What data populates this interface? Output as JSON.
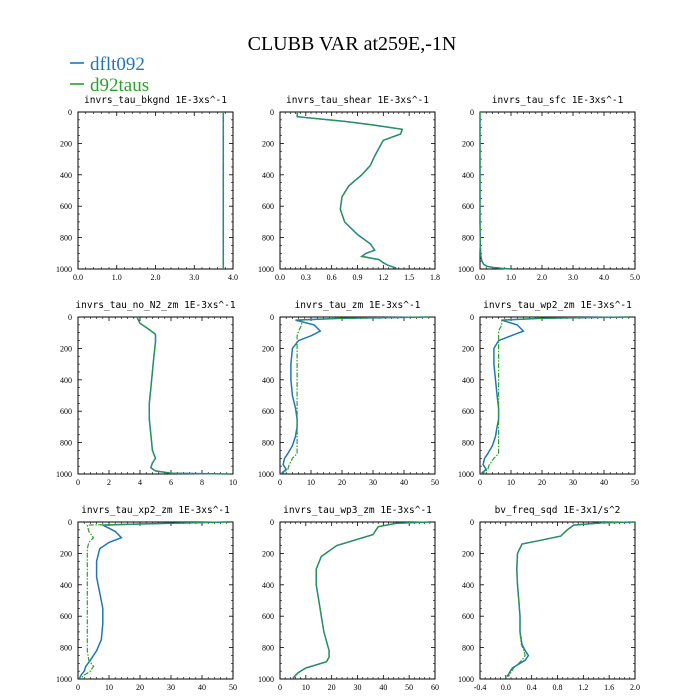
{
  "figure": {
    "title": "CLUBB VAR at259E,-1N",
    "legend": [
      {
        "name": "dflt092",
        "color": "#1f77b4"
      },
      {
        "name": "d92taus",
        "color": "#2ca02c"
      }
    ],
    "legend_placement": "top-left"
  },
  "chart_data": [
    {
      "type": "line",
      "title": "invrs_tau_bkgnd",
      "unit": "1E-3xs^-1",
      "xlim": [
        0,
        4
      ],
      "xticks": [
        "0.0",
        "1.0",
        "2.0",
        "3.0",
        "4.0"
      ],
      "ylim": [
        1000,
        0
      ],
      "yticks": [
        "0",
        "200",
        "400",
        "600",
        "800",
        "1000"
      ],
      "series": [
        {
          "name": "dflt092",
          "x": [
            3.75,
            3.75
          ],
          "y": [
            0,
            1000
          ]
        },
        {
          "name": "d92taus",
          "x": [
            3.75,
            3.75
          ],
          "y": [
            0,
            1000
          ]
        }
      ]
    },
    {
      "type": "line",
      "title": "invrs_tau_shear",
      "unit": "1E-3xs^-1",
      "xlim": [
        0,
        1.8
      ],
      "xticks": [
        "0.0",
        "0.3",
        "0.6",
        "0.9",
        "1.2",
        "1.5",
        "1.8"
      ],
      "ylim": [
        1000,
        0
      ],
      "yticks": [
        "0",
        "200",
        "400",
        "600",
        "800",
        "1000"
      ],
      "series": [
        {
          "name": "dflt092",
          "x": [
            0.2,
            0.2,
            0.75,
            1.05,
            1.42,
            1.4,
            1.2,
            1.15,
            1.1,
            1.05,
            0.95,
            0.8,
            0.72,
            0.7,
            0.75,
            0.9,
            1.05,
            1.1,
            1.0,
            0.95,
            1.15,
            1.2,
            1.25,
            1.3,
            1.35
          ],
          "y": [
            0,
            30,
            60,
            80,
            110,
            140,
            180,
            230,
            280,
            340,
            400,
            470,
            540,
            620,
            700,
            780,
            840,
            880,
            900,
            920,
            940,
            960,
            975,
            985,
            995
          ]
        },
        {
          "name": "d92taus",
          "x": [
            0.2,
            0.2,
            0.75,
            1.05,
            1.42,
            1.4,
            1.2,
            1.15,
            1.1,
            1.05,
            0.95,
            0.8,
            0.72,
            0.7,
            0.75,
            0.9,
            1.05,
            1.1,
            1.0,
            0.95,
            1.15,
            1.2,
            1.25,
            1.3,
            1.35
          ],
          "y": [
            0,
            30,
            60,
            80,
            110,
            140,
            180,
            230,
            280,
            340,
            400,
            470,
            540,
            620,
            700,
            780,
            840,
            880,
            900,
            920,
            940,
            960,
            975,
            985,
            995
          ]
        }
      ]
    },
    {
      "type": "line",
      "title": "invrs_tau_sfc",
      "unit": "1E-3xs^-1",
      "xlim": [
        0,
        5
      ],
      "xticks": [
        "0.0",
        "1.0",
        "2.0",
        "3.0",
        "4.0",
        "5.0"
      ],
      "ylim": [
        1000,
        0
      ],
      "yticks": [
        "0",
        "200",
        "400",
        "600",
        "800",
        "1000"
      ],
      "series": [
        {
          "name": "dflt092",
          "x": [
            0.0,
            0.0,
            0.01,
            0.03,
            0.06,
            0.12,
            0.22,
            0.4,
            0.7,
            1.0
          ],
          "y": [
            0,
            700,
            850,
            920,
            950,
            970,
            982,
            990,
            996,
            1000
          ]
        },
        {
          "name": "d92taus",
          "x": [
            0.0,
            0.0,
            0.01,
            0.03,
            0.06,
            0.12,
            0.22,
            0.4,
            0.7,
            1.0
          ],
          "y": [
            0,
            700,
            850,
            920,
            950,
            970,
            982,
            990,
            996,
            1000
          ]
        }
      ]
    },
    {
      "type": "line",
      "title": "invrs_tau_no_N2_zm",
      "unit": "1E-3xs^-1",
      "xlim": [
        0,
        10
      ],
      "xticks": [
        "0",
        "2",
        "4",
        "6",
        "8",
        "10"
      ],
      "ylim": [
        1000,
        0
      ],
      "yticks": [
        "0",
        "200",
        "400",
        "600",
        "800",
        "1000"
      ],
      "series": [
        {
          "name": "dflt092",
          "x": [
            3.8,
            4.0,
            4.6,
            5.0,
            5.0,
            4.9,
            4.8,
            4.7,
            4.6,
            4.6,
            4.7,
            4.8,
            5.0,
            4.8,
            4.7,
            5.0,
            6.0,
            9.8
          ],
          "y": [
            0,
            40,
            80,
            110,
            160,
            250,
            350,
            450,
            550,
            650,
            750,
            850,
            900,
            930,
            960,
            980,
            995,
            1000
          ]
        },
        {
          "name": "d92taus",
          "x": [
            3.8,
            4.0,
            4.6,
            5.0,
            5.0,
            4.9,
            4.8,
            4.7,
            4.6,
            4.6,
            4.7,
            4.8,
            5.0,
            4.8,
            4.7,
            5.0,
            6.0,
            9.8
          ],
          "y": [
            0,
            40,
            80,
            110,
            160,
            250,
            350,
            450,
            550,
            650,
            750,
            850,
            900,
            930,
            960,
            980,
            995,
            1000
          ]
        }
      ]
    },
    {
      "type": "line",
      "title": "invrs_tau_zm",
      "unit": "1E-3xs^-1",
      "xlim": [
        0,
        50
      ],
      "xticks": [
        "0",
        "10",
        "20",
        "30",
        "40",
        "50"
      ],
      "ylim": [
        1000,
        0
      ],
      "yticks": [
        "0",
        "200",
        "400",
        "600",
        "800",
        "1000"
      ],
      "series": [
        {
          "name": "dflt092",
          "x": [
            48,
            20,
            5,
            11,
            13,
            10,
            6,
            4,
            3.5,
            3.5,
            4,
            5,
            5.5,
            5.5,
            5,
            4,
            2.5,
            1.5,
            1,
            2,
            0.5
          ],
          "y": [
            0,
            8,
            20,
            50,
            90,
            120,
            150,
            200,
            300,
            400,
            500,
            580,
            650,
            700,
            760,
            820,
            870,
            900,
            940,
            970,
            995
          ]
        },
        {
          "name": "d92taus",
          "x": [
            48,
            20,
            7,
            7,
            6,
            5.5,
            5.5,
            5.5,
            5.5,
            5.5,
            5.5,
            5.5,
            5.5,
            5.5,
            5.5,
            5.5,
            5.5,
            4,
            3,
            2.5,
            1
          ],
          "y": [
            0,
            8,
            20,
            50,
            90,
            120,
            150,
            200,
            300,
            400,
            500,
            580,
            650,
            700,
            760,
            820,
            870,
            900,
            940,
            970,
            995
          ]
        }
      ]
    },
    {
      "type": "line",
      "title": "invrs_tau_wp2_zm",
      "unit": "1E-3xs^-1",
      "xlim": [
        0,
        50
      ],
      "xticks": [
        "0",
        "10",
        "20",
        "30",
        "40",
        "50"
      ],
      "ylim": [
        1000,
        0
      ],
      "yticks": [
        "0",
        "200",
        "400",
        "600",
        "800",
        "1000"
      ],
      "series": [
        {
          "name": "dflt092",
          "x": [
            48,
            20,
            7,
            12,
            14,
            10,
            6,
            4.5,
            4.5,
            5,
            5.5,
            6,
            6,
            5.5,
            5,
            4,
            2.5,
            1.5,
            1,
            2,
            0.5
          ],
          "y": [
            0,
            8,
            20,
            50,
            90,
            120,
            150,
            200,
            300,
            400,
            500,
            580,
            650,
            700,
            760,
            820,
            870,
            900,
            940,
            970,
            995
          ]
        },
        {
          "name": "d92taus",
          "x": [
            48,
            20,
            7,
            7,
            6,
            6,
            6,
            6,
            6,
            6,
            6,
            6,
            6,
            6,
            6,
            6,
            6,
            4.5,
            3,
            2.5,
            1
          ],
          "y": [
            0,
            8,
            20,
            50,
            90,
            120,
            150,
            200,
            300,
            400,
            500,
            580,
            650,
            700,
            760,
            820,
            870,
            900,
            940,
            970,
            995
          ]
        }
      ]
    },
    {
      "type": "line",
      "title": "invrs_tau_xp2_zm",
      "unit": "1E-3xs^-1",
      "xlim": [
        0,
        50
      ],
      "xticks": [
        "0",
        "10",
        "20",
        "30",
        "40",
        "50"
      ],
      "ylim": [
        1000,
        0
      ],
      "yticks": [
        "0",
        "200",
        "400",
        "600",
        "800",
        "1000"
      ],
      "series": [
        {
          "name": "dflt092",
          "x": [
            48,
            25,
            8,
            12,
            14,
            10,
            7,
            6,
            6,
            7,
            8,
            8,
            7.5,
            6,
            4,
            2.5,
            2,
            1,
            0.5
          ],
          "y": [
            0,
            10,
            20,
            60,
            100,
            130,
            170,
            250,
            350,
            450,
            550,
            650,
            750,
            820,
            880,
            920,
            950,
            975,
            995
          ]
        },
        {
          "name": "d92taus",
          "x": [
            48,
            25,
            3,
            3.5,
            5,
            3.5,
            3,
            3,
            3,
            3,
            3,
            3,
            3,
            3,
            3.5,
            5,
            4,
            2,
            1
          ],
          "y": [
            0,
            10,
            20,
            60,
            100,
            130,
            170,
            250,
            350,
            450,
            550,
            650,
            750,
            820,
            880,
            920,
            950,
            975,
            995
          ]
        }
      ]
    },
    {
      "type": "line",
      "title": "invrs_tau_wp3_zm",
      "unit": "1E-3xs^-1",
      "xlim": [
        0,
        60
      ],
      "xticks": [
        "0",
        "10",
        "20",
        "30",
        "40",
        "50",
        "60"
      ],
      "ylim": [
        1000,
        0
      ],
      "yticks": [
        "0",
        "200",
        "400",
        "600",
        "800",
        "1000"
      ],
      "series": [
        {
          "name": "dflt092",
          "x": [
            58,
            45,
            38,
            36,
            22,
            16,
            14,
            14,
            15,
            16,
            17,
            18,
            19,
            19,
            18,
            14,
            10,
            7,
            5
          ],
          "y": [
            0,
            8,
            30,
            80,
            150,
            220,
            300,
            400,
            500,
            600,
            700,
            760,
            820,
            860,
            890,
            910,
            930,
            960,
            995
          ]
        },
        {
          "name": "d92taus",
          "x": [
            58,
            45,
            38,
            36,
            22,
            16,
            14,
            14,
            15,
            16,
            17,
            18,
            19,
            19,
            18,
            14,
            10,
            7,
            5
          ],
          "y": [
            0,
            8,
            30,
            80,
            150,
            220,
            300,
            400,
            500,
            600,
            700,
            760,
            820,
            860,
            890,
            910,
            930,
            960,
            995
          ]
        }
      ]
    },
    {
      "type": "line",
      "title": "bv_freq_sqd",
      "unit": "1E-3x1/s^2",
      "xlim": [
        -0.4,
        2.0
      ],
      "xticks": [
        "-0.4",
        "0.0",
        "0.4",
        "0.8",
        "1.2",
        "1.6",
        "2.0"
      ],
      "ylim": [
        1000,
        0
      ],
      "yticks": [
        "0",
        "200",
        "400",
        "600",
        "800",
        "1000"
      ],
      "series": [
        {
          "name": "dflt092",
          "x": [
            2.0,
            1.5,
            1.05,
            0.95,
            0.85,
            0.5,
            0.25,
            0.18,
            0.17,
            0.18,
            0.2,
            0.22,
            0.22,
            0.25,
            0.3,
            0.35,
            0.3,
            0.1,
            0.02
          ],
          "y": [
            0,
            5,
            20,
            50,
            90,
            120,
            140,
            200,
            300,
            400,
            500,
            600,
            700,
            780,
            820,
            850,
            880,
            930,
            985
          ]
        },
        {
          "name": "d92taus",
          "x": [
            2.0,
            1.5,
            1.05,
            0.95,
            0.85,
            0.5,
            0.25,
            0.18,
            0.17,
            0.18,
            0.2,
            0.22,
            0.22,
            0.24,
            0.28,
            0.3,
            0.25,
            0.12,
            0.04
          ],
          "y": [
            0,
            5,
            20,
            50,
            90,
            120,
            140,
            200,
            300,
            400,
            500,
            600,
            700,
            780,
            820,
            850,
            880,
            930,
            985
          ]
        }
      ]
    }
  ]
}
